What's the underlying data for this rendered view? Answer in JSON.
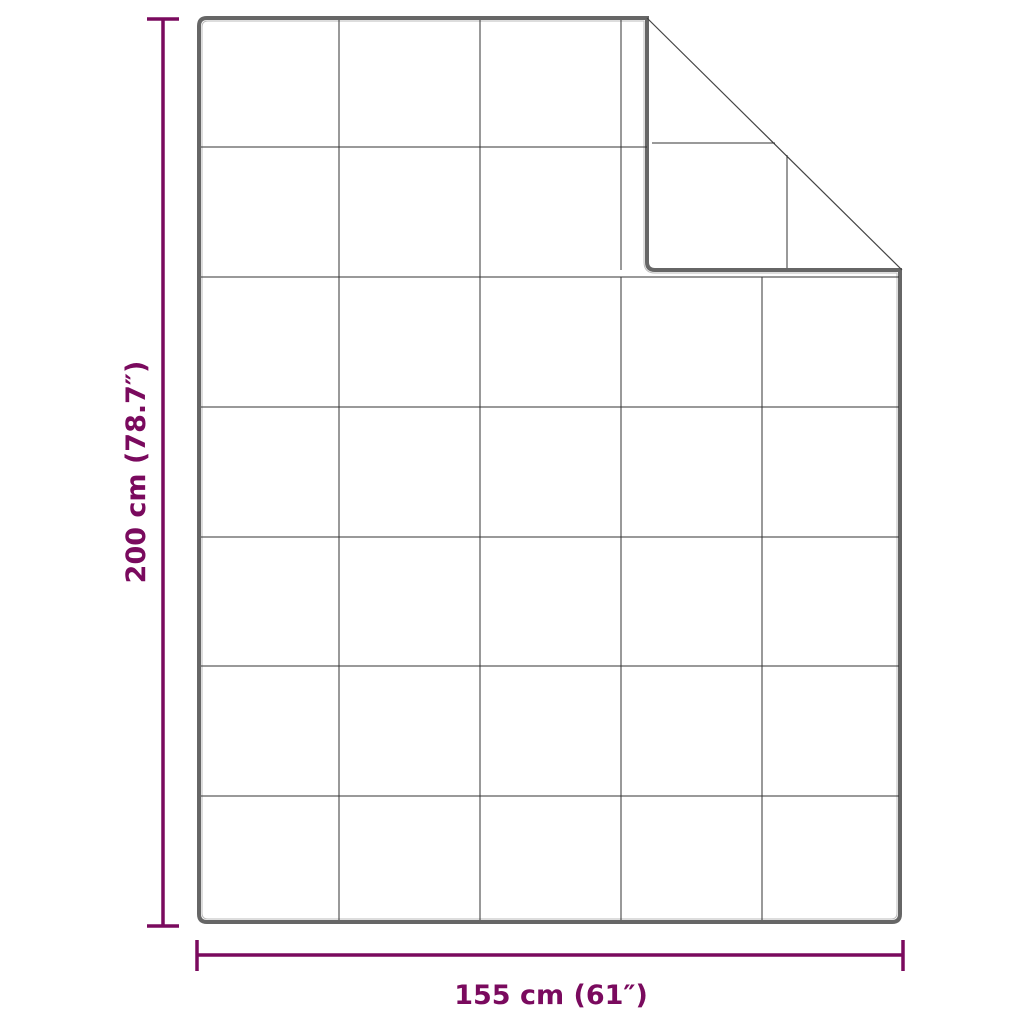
{
  "dimensions": {
    "height_label": "200 cm (78.7″)",
    "width_label": "155 cm (61″)"
  },
  "colors": {
    "dimension": "#7a0a5e",
    "outline": "#555555",
    "grid": "#333333"
  },
  "blanket": {
    "grid_columns": 5,
    "grid_rows": 7,
    "folded_corner": "top-right"
  }
}
